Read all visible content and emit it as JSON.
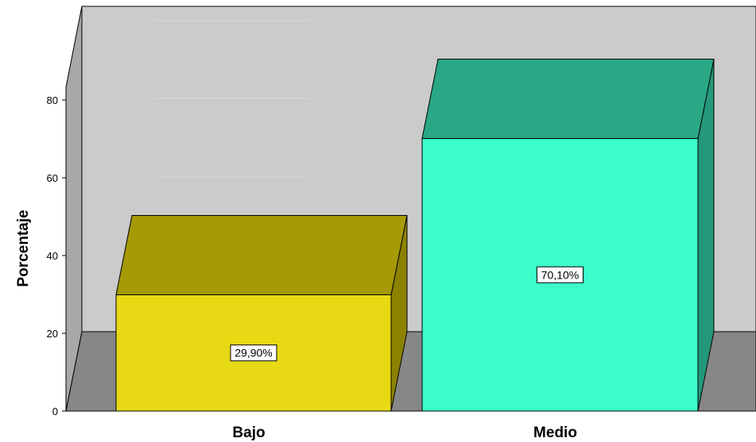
{
  "chart_data": {
    "type": "bar",
    "categories": [
      "Bajo",
      "Medio"
    ],
    "values": [
      29.9,
      70.1
    ],
    "data_labels": [
      "29,90%",
      "70,10%"
    ],
    "ylabel": "Porcentaje",
    "xlabel": "",
    "ylim": [
      0,
      100
    ],
    "yticks": [
      0,
      20,
      40,
      60,
      80
    ],
    "colors": {
      "bars_front": [
        "#e8d915",
        "#3bfccb"
      ],
      "bars_top": [
        "#a69906",
        "#2aa886"
      ],
      "bars_side": [
        "#8c8200",
        "#24987a"
      ],
      "back_wall": "#cbcbcb",
      "side_wall": "#a8a8a8",
      "floor": "#878787"
    },
    "style": "3d",
    "grid": true
  }
}
